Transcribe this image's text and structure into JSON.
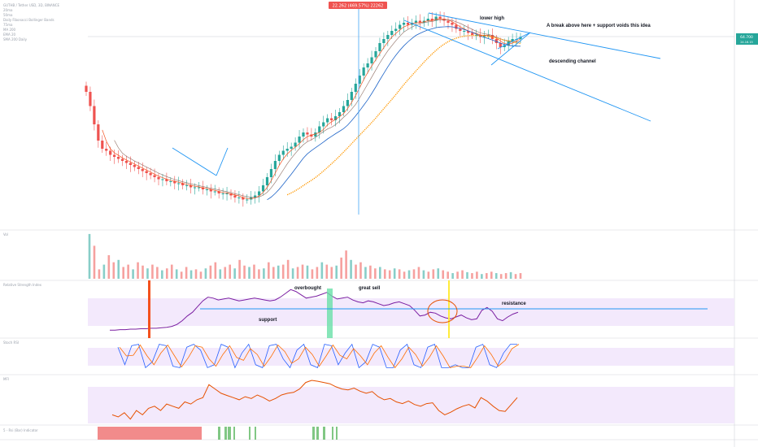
{
  "header": {
    "legend_lines": [
      "GUTHB / Tether USD, 3D, BINANCE",
      "20ma",
      "50ma",
      "Daily Fibonacci Bollinger Bands",
      "75ma",
      "MA 200",
      "EMA 20",
      "SMA 200 Daily"
    ],
    "price_callout": "22.262 (469.57%) 22262"
  },
  "price_axis": {
    "current_price_label": "64.700",
    "current_price_sub": "24.16.15"
  },
  "annotations": {
    "lower_high": "lower high",
    "break_above": "A break above here + support voids this idea",
    "descending_channel": "descending channel",
    "overbought": "overbought",
    "great_sell": "great sell",
    "support": "support",
    "resistance": "resistance"
  },
  "panels": {
    "volume": "Vol",
    "rsi": "Relative Strength Index",
    "stoch": "Stoch RSI",
    "mfi": "MFI",
    "bottom": "5 - Rsi (Bar) Indicator"
  },
  "colors": {
    "up": "#26a69a",
    "down": "#ef5350",
    "channel": "#2196f3",
    "ma_red": "#f4511e",
    "ma_orange": "#ff9800",
    "ma_blue": "#1e64c8",
    "rsi": "#7b1fa2",
    "band": "#f1e7fb",
    "mfi": "#e65100",
    "stoch_k": "#2962ff",
    "stoch_d": "#ff6d00"
  },
  "chart_data": {
    "type": "candlestick",
    "title": "",
    "callout": "22.262 (469.57%) 22262",
    "close_series": [
      0.62,
      0.55,
      0.46,
      0.38,
      0.34,
      0.33,
      0.31,
      0.3,
      0.29,
      0.28,
      0.27,
      0.26,
      0.25,
      0.24,
      0.23,
      0.22,
      0.21,
      0.2,
      0.19,
      0.19,
      0.18,
      0.18,
      0.17,
      0.17,
      0.16,
      0.16,
      0.15,
      0.15,
      0.15,
      0.14,
      0.14,
      0.13,
      0.13,
      0.12,
      0.12,
      0.12,
      0.11,
      0.1,
      0.1,
      0.09,
      0.09,
      0.1,
      0.11,
      0.13,
      0.16,
      0.2,
      0.24,
      0.28,
      0.31,
      0.33,
      0.34,
      0.35,
      0.37,
      0.4,
      0.42,
      0.41,
      0.4,
      0.42,
      0.45,
      0.47,
      0.49,
      0.48,
      0.5,
      0.52,
      0.55,
      0.58,
      0.62,
      0.66,
      0.7,
      0.74,
      0.76,
      0.79,
      0.82,
      0.86,
      0.88,
      0.9,
      0.92,
      0.93,
      0.95,
      0.96,
      0.95,
      0.96,
      0.97,
      0.96,
      0.97,
      0.98,
      0.97,
      0.99,
      0.98,
      0.97,
      0.96,
      0.95,
      0.93,
      0.92,
      0.92,
      0.91,
      0.9,
      0.9,
      0.89,
      0.9,
      0.9,
      0.88,
      0.86,
      0.84,
      0.85,
      0.87,
      0.88,
      0.88,
      0.89
    ],
    "rsi": [
      0.1,
      0.1,
      0.11,
      0.11,
      0.12,
      0.12,
      0.13,
      0.13,
      0.14,
      0.14,
      0.15,
      0.16,
      0.18,
      0.22,
      0.3,
      0.4,
      0.48,
      0.6,
      0.72,
      0.8,
      0.78,
      0.74,
      0.76,
      0.78,
      0.75,
      0.72,
      0.74,
      0.76,
      0.78,
      0.76,
      0.74,
      0.72,
      0.74,
      0.8,
      0.88,
      0.96,
      0.92,
      0.85,
      0.78,
      0.8,
      0.82,
      0.86,
      0.9,
      0.82,
      0.76,
      0.78,
      0.8,
      0.74,
      0.7,
      0.68,
      0.72,
      0.7,
      0.66,
      0.62,
      0.64,
      0.68,
      0.7,
      0.66,
      0.62,
      0.52,
      0.4,
      0.42,
      0.48,
      0.46,
      0.4,
      0.36,
      0.34,
      0.38,
      0.42,
      0.36,
      0.32,
      0.34,
      0.52,
      0.58,
      0.5,
      0.34,
      0.3,
      0.38,
      0.44,
      0.48
    ],
    "stoch": [
      0.8,
      0.2,
      0.85,
      0.9,
      0.1,
      0.3,
      0.9,
      0.85,
      0.15,
      0.1,
      0.8,
      0.9,
      0.7,
      0.1,
      0.2,
      0.9,
      0.8,
      0.1,
      0.6,
      0.9,
      0.2,
      0.1,
      0.85,
      0.9,
      0.4,
      0.1,
      0.7,
      0.9,
      0.2,
      0.1,
      0.9,
      0.85,
      0.2,
      0.6,
      0.9,
      0.1,
      0.3,
      0.9,
      0.8,
      0.1,
      0.1,
      0.7,
      0.9,
      0.2,
      0.1,
      0.8,
      0.9,
      0.1,
      0.1,
      0.2,
      0.1,
      0.1,
      0.8,
      0.9,
      0.2,
      0.1,
      0.6,
      0.9,
      0.9
    ],
    "mfi": [
      0.2,
      0.15,
      0.25,
      0.1,
      0.3,
      0.2,
      0.35,
      0.4,
      0.3,
      0.45,
      0.4,
      0.35,
      0.5,
      0.45,
      0.55,
      0.6,
      0.9,
      0.8,
      0.7,
      0.65,
      0.6,
      0.55,
      0.62,
      0.58,
      0.66,
      0.6,
      0.52,
      0.58,
      0.66,
      0.7,
      0.72,
      0.8,
      0.95,
      1.0,
      0.98,
      0.95,
      0.92,
      0.85,
      0.8,
      0.78,
      0.82,
      0.75,
      0.7,
      0.74,
      0.62,
      0.55,
      0.58,
      0.5,
      0.46,
      0.52,
      0.44,
      0.4,
      0.46,
      0.48,
      0.3,
      0.2,
      0.26,
      0.34,
      0.4,
      0.44,
      0.36,
      0.6,
      0.52,
      0.4,
      0.3,
      0.28,
      0.44,
      0.6
    ],
    "volume": [
      0.95,
      0.7,
      0.2,
      0.3,
      0.5,
      0.35,
      0.4,
      0.25,
      0.3,
      0.2,
      0.35,
      0.28,
      0.22,
      0.3,
      0.25,
      0.18,
      0.22,
      0.3,
      0.2,
      0.15,
      0.25,
      0.18,
      0.2,
      0.15,
      0.22,
      0.28,
      0.35,
      0.2,
      0.25,
      0.3,
      0.22,
      0.4,
      0.28,
      0.25,
      0.3,
      0.2,
      0.22,
      0.35,
      0.25,
      0.28,
      0.3,
      0.4,
      0.22,
      0.25,
      0.3,
      0.28,
      0.2,
      0.25,
      0.35,
      0.3,
      0.25,
      0.28,
      0.45,
      0.6,
      0.4,
      0.3,
      0.35,
      0.25,
      0.28,
      0.22,
      0.25,
      0.2,
      0.18,
      0.22,
      0.2,
      0.15,
      0.18,
      0.2,
      0.25,
      0.18,
      0.15,
      0.2,
      0.22,
      0.18,
      0.15,
      0.12,
      0.15,
      0.18,
      0.14,
      0.12,
      0.15,
      0.1,
      0.12,
      0.15,
      0.12,
      0.1,
      0.12,
      0.14,
      0.1,
      0.12
    ]
  }
}
